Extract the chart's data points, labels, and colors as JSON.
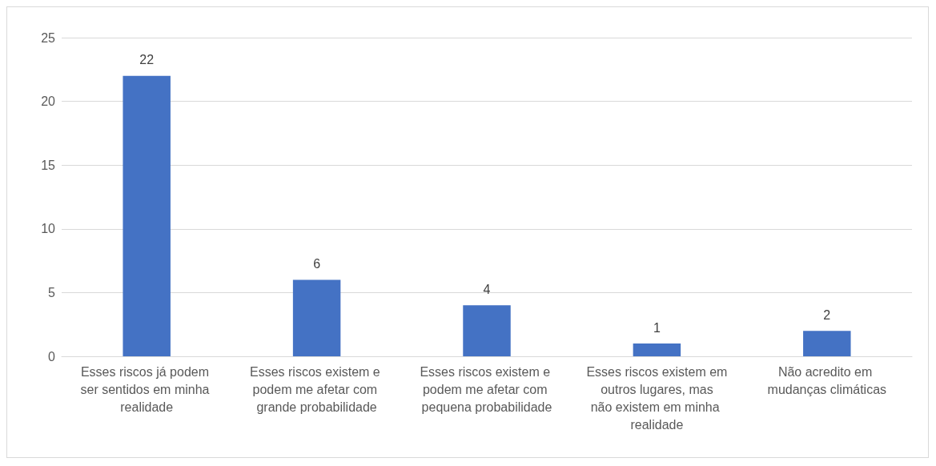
{
  "chart_data": {
    "type": "bar",
    "categories": [
      "Esses riscos já podem ser sentidos em minha realidade",
      "Esses riscos existem e podem me afetar com grande probabilidade",
      "Esses riscos existem e podem me afetar com pequena probabilidade",
      "Esses riscos existem em outros lugares, mas não existem em minha realidade",
      "Não acredito em mudanças climáticas"
    ],
    "values": [
      22,
      6,
      4,
      1,
      2
    ],
    "color": "#4472c4",
    "ylim": [
      0,
      25
    ],
    "yticks": [
      0,
      5,
      10,
      15,
      20,
      25
    ],
    "grid": "y",
    "data_labels": true
  }
}
